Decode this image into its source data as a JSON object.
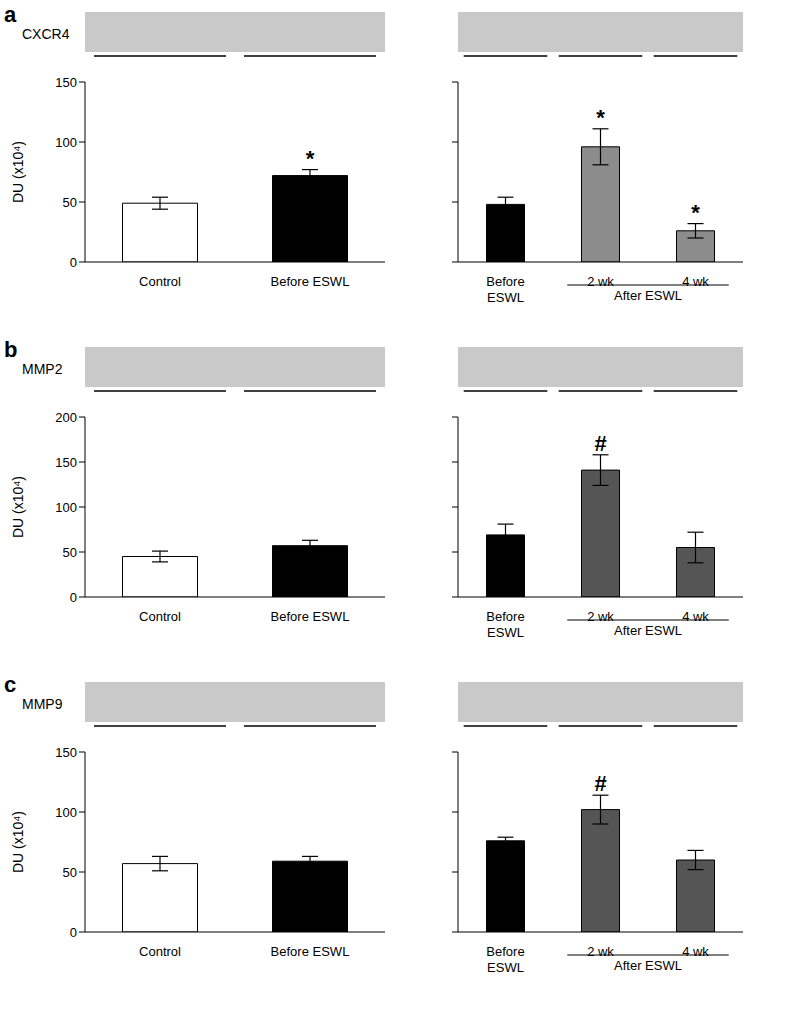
{
  "chart_data": [
    {
      "type": "bar",
      "panel_label": "a",
      "blot_label": "CXCR4",
      "ylabel": "DU (x10⁴)",
      "categories": [
        "Control",
        "Before ESWL"
      ],
      "values": [
        49,
        72
      ],
      "errors": [
        5,
        5
      ],
      "significance": [
        null,
        "*"
      ],
      "colors": [
        "#ffffff",
        "#000000"
      ],
      "ylim": [
        0,
        150
      ],
      "yticks": [
        0,
        50,
        100,
        150
      ]
    },
    {
      "type": "bar",
      "categories": [
        "Before ESWL",
        "2 wk",
        "4 wk"
      ],
      "values": [
        48,
        96,
        26
      ],
      "errors": [
        6,
        15,
        6
      ],
      "significance": [
        null,
        "*",
        "*"
      ],
      "colors": [
        "#000000",
        "#8c8c8c",
        "#8c8c8c"
      ],
      "ylim": [
        0,
        150
      ],
      "yticks": [
        0,
        50,
        100,
        150
      ],
      "tick_labels": "x",
      "group_label": "After ESWL",
      "group_categories": [
        "2 wk",
        "4 wk"
      ]
    },
    {
      "type": "bar",
      "panel_label": "b",
      "blot_label": "MMP2",
      "ylabel": "DU (x10⁴)",
      "categories": [
        "Control",
        "Before ESWL"
      ],
      "values": [
        45,
        57
      ],
      "errors": [
        6,
        6
      ],
      "significance": [
        null,
        null
      ],
      "colors": [
        "#ffffff",
        "#000000"
      ],
      "ylim": [
        0,
        200
      ],
      "yticks": [
        0,
        50,
        100,
        150,
        200
      ]
    },
    {
      "type": "bar",
      "categories": [
        "Before ESWL",
        "2 wk",
        "4 wk"
      ],
      "values": [
        69,
        141,
        55
      ],
      "errors": [
        12,
        17,
        17
      ],
      "significance": [
        null,
        "#",
        null
      ],
      "colors": [
        "#000000",
        "#555555",
        "#555555"
      ],
      "ylim": [
        0,
        200
      ],
      "yticks": [
        0,
        50,
        100,
        150,
        200
      ],
      "tick_labels": "x",
      "group_label": "After ESWL",
      "group_categories": [
        "2 wk",
        "4 wk"
      ]
    },
    {
      "type": "bar",
      "panel_label": "c",
      "blot_label": "MMP9",
      "ylabel": "DU (x10⁴)",
      "categories": [
        "Control",
        "Before ESWL"
      ],
      "values": [
        57,
        59
      ],
      "errors": [
        6,
        4
      ],
      "significance": [
        null,
        null
      ],
      "colors": [
        "#ffffff",
        "#000000"
      ],
      "ylim": [
        0,
        150
      ],
      "yticks": [
        0,
        50,
        100,
        150
      ]
    },
    {
      "type": "bar",
      "categories": [
        "Before ESWL",
        "2 wk",
        "4 wk"
      ],
      "values": [
        76,
        102,
        60
      ],
      "errors": [
        3,
        12,
        8
      ],
      "significance": [
        null,
        "#",
        null
      ],
      "colors": [
        "#000000",
        "#555555",
        "#555555"
      ],
      "ylim": [
        0,
        150
      ],
      "yticks": [
        0,
        50,
        100,
        150
      ],
      "tick_labels": "x",
      "group_label": "After ESWL",
      "group_categories": [
        "2 wk",
        "4 wk"
      ]
    }
  ]
}
